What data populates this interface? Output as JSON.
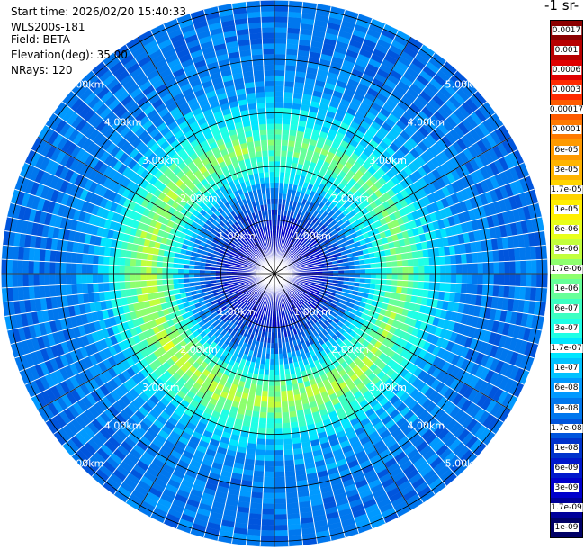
{
  "info": {
    "start_time": "Start time: 2026/02/20 15:40:33",
    "device": "WLS200s-181",
    "field": "Field: BETA",
    "elevation": "Elevation(deg): 35.00",
    "nrays": "NRays: 120"
  },
  "colorbar": {
    "unit_label": "-1 sr-",
    "levels": [
      {
        "label": "0.0017",
        "color": "#8b0000"
      },
      {
        "label": "0.001",
        "color": "#b80000"
      },
      {
        "label": "0.0006",
        "color": "#e00000"
      },
      {
        "label": "0.0003",
        "color": "#ff2a00"
      },
      {
        "label": "0.00017",
        "color": "#ff5a00"
      },
      {
        "label": "0.0001",
        "color": "#ff7a00"
      },
      {
        "label": "6e-05",
        "color": "#ff9a00"
      },
      {
        "label": "3e-05",
        "color": "#ffb400"
      },
      {
        "label": "1.7e-05",
        "color": "#ffd400"
      },
      {
        "label": "1e-05",
        "color": "#ffef00"
      },
      {
        "label": "6e-06",
        "color": "#e8ff1a"
      },
      {
        "label": "3e-06",
        "color": "#c2ff3c"
      },
      {
        "label": "1.7e-06",
        "color": "#8dff6e"
      },
      {
        "label": "1e-06",
        "color": "#66ff99"
      },
      {
        "label": "6e-07",
        "color": "#3cffc2"
      },
      {
        "label": "3e-07",
        "color": "#1effe6"
      },
      {
        "label": "1.7e-07",
        "color": "#00e6ff"
      },
      {
        "label": "1e-07",
        "color": "#00c2ff"
      },
      {
        "label": "6e-08",
        "color": "#0099ff"
      },
      {
        "label": "3e-08",
        "color": "#0077ee"
      },
      {
        "label": "1.7e-08",
        "color": "#0055dd"
      },
      {
        "label": "1e-08",
        "color": "#0033cc"
      },
      {
        "label": "6e-09",
        "color": "#0018cc"
      },
      {
        "label": "3e-09",
        "color": "#0000cc"
      },
      {
        "label": "1.7e-09",
        "color": "#00009a"
      },
      {
        "label": "1e-09",
        "color": "#000066"
      }
    ]
  },
  "chart_data": {
    "type": "heatmap",
    "projection": "polar PPI scan (map view, north up)",
    "field": "BETA",
    "elevation_deg": 35.0,
    "n_rays": 120,
    "range_rings_km": [
      1,
      2,
      3,
      4,
      5
    ],
    "ring_labels": [
      "1.00km",
      "2.00km",
      "3.00km",
      "4.00km",
      "5.00km"
    ],
    "max_range_km": 5.1,
    "azimuth_gridlines_deg": [
      0,
      30,
      60,
      90,
      120,
      150,
      180,
      210,
      240,
      270,
      300,
      330
    ],
    "scale": "log10",
    "color_levels": [
      "1e-09",
      "1.7e-09",
      "3e-09",
      "6e-09",
      "1e-08",
      "1.7e-08",
      "3e-08",
      "6e-08",
      "1e-07",
      "1.7e-07",
      "3e-07",
      "6e-07",
      "1e-06",
      "1.7e-06",
      "3e-06",
      "6e-06",
      "1e-05",
      "1.7e-05",
      "3e-05",
      "6e-05",
      "0.0001",
      "0.00017",
      "0.0003",
      "0.0006",
      "0.001",
      "0.0017"
    ],
    "radial_profile": {
      "range_km": [
        0.0,
        0.4,
        0.8,
        1.2,
        1.6,
        2.0,
        2.4,
        2.8,
        3.2,
        3.6,
        4.0,
        4.4,
        4.8,
        5.1
      ],
      "beta": [
        6e-09,
        4e-09,
        6e-09,
        2e-08,
        8e-08,
        6e-07,
        3e-06,
        5e-07,
        1.2e-07,
        6e-08,
        5e-08,
        4e-08,
        4e-08,
        4e-08
      ]
    }
  }
}
